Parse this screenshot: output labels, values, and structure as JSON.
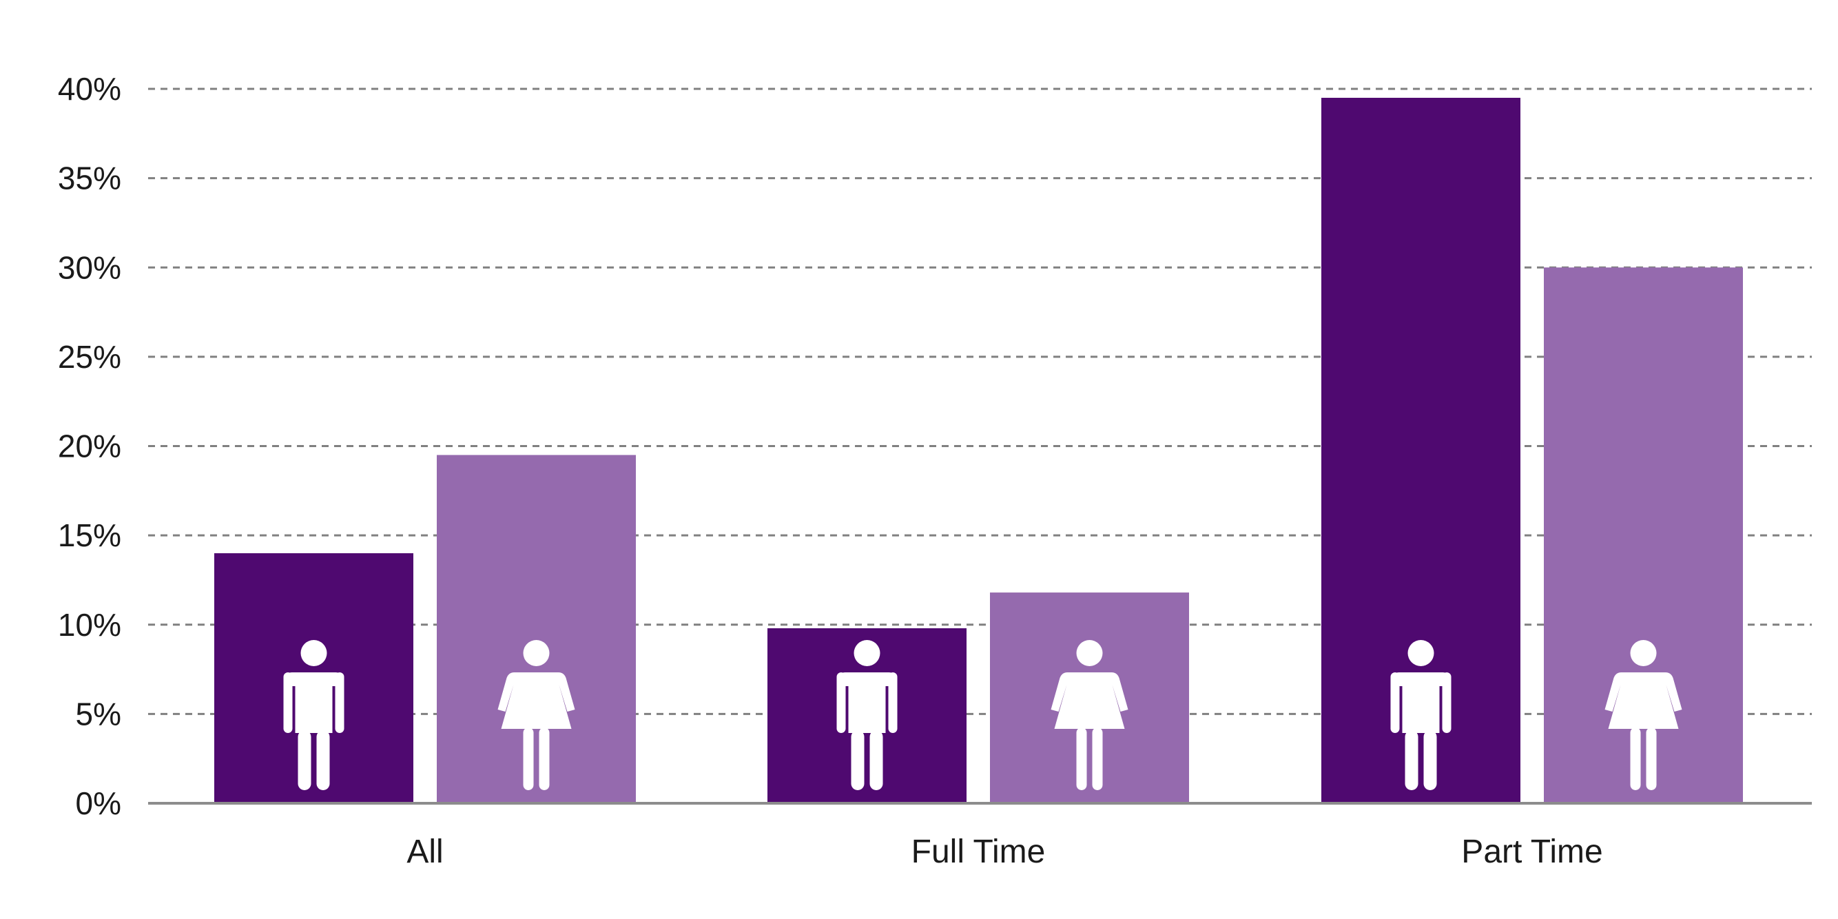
{
  "chart_data": {
    "type": "bar",
    "categories": [
      "All",
      "Full Time",
      "Part Time"
    ],
    "series": [
      {
        "icon": "man-icon",
        "color": "#4f0970",
        "values": [
          14.0,
          9.8,
          39.5
        ]
      },
      {
        "icon": "woman-icon",
        "color": "#956aae",
        "values": [
          19.5,
          11.8,
          30.0
        ]
      }
    ],
    "y_ticks": [
      "0%",
      "5%",
      "10%",
      "15%",
      "20%",
      "25%",
      "30%",
      "35%",
      "40%"
    ],
    "ylim": [
      0,
      40
    ],
    "grid": true,
    "legend": "none"
  }
}
